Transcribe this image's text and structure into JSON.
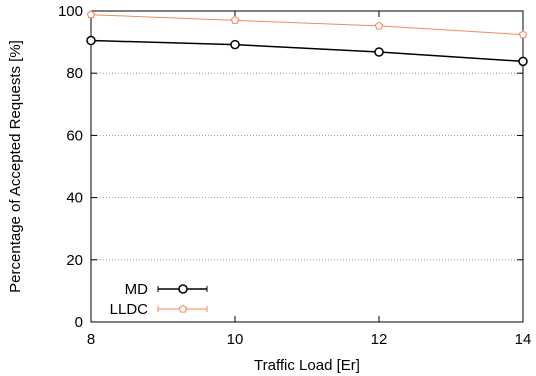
{
  "chart_data": {
    "type": "line",
    "xlabel": "Traffic Load [Er]",
    "ylabel": "Percentage of Accepted Requests [%]",
    "x_ticks": [
      8,
      10,
      12,
      14
    ],
    "y_ticks": [
      0,
      20,
      40,
      60,
      80,
      100
    ],
    "xlim": [
      8,
      14
    ],
    "ylim": [
      0,
      100
    ],
    "grid": "horizontal dotted",
    "legend_position": "bottom-left",
    "series": [
      {
        "name": "MD",
        "color": "#000000",
        "marker": "circle",
        "x": [
          8,
          10,
          12,
          14
        ],
        "y": [
          90.5,
          89.2,
          86.8,
          83.8
        ]
      },
      {
        "name": "LLDC",
        "color": "#f08a5d",
        "marker": "pentagon",
        "x": [
          8,
          10,
          12,
          14
        ],
        "y": [
          98.8,
          97.0,
          95.2,
          92.4
        ]
      }
    ]
  }
}
